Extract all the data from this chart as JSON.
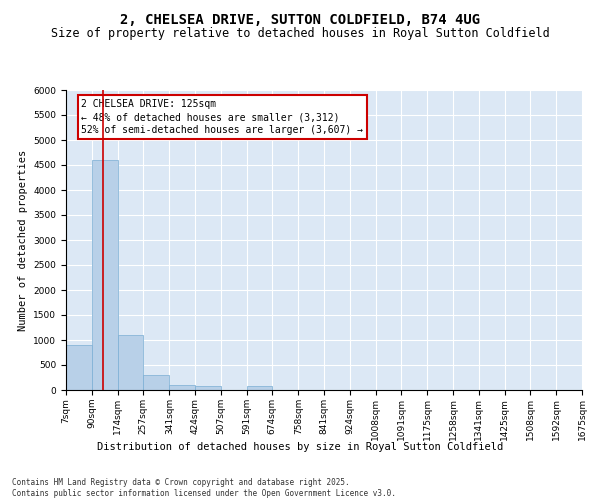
{
  "title": "2, CHELSEA DRIVE, SUTTON COLDFIELD, B74 4UG",
  "subtitle": "Size of property relative to detached houses in Royal Sutton Coldfield",
  "xlabel": "Distribution of detached houses by size in Royal Sutton Coldfield",
  "ylabel": "Number of detached properties",
  "bar_color": "#b8d0e8",
  "bar_edge_color": "#7aaed4",
  "background_color": "#dce8f5",
  "grid_color": "white",
  "bins": [
    7,
    90,
    174,
    257,
    341,
    424,
    507,
    591,
    674,
    758,
    841,
    924,
    1008,
    1091,
    1175,
    1258,
    1341,
    1425,
    1508,
    1592,
    1675
  ],
  "bin_labels": [
    "7sqm",
    "90sqm",
    "174sqm",
    "257sqm",
    "341sqm",
    "424sqm",
    "507sqm",
    "591sqm",
    "674sqm",
    "758sqm",
    "841sqm",
    "924sqm",
    "1008sqm",
    "1091sqm",
    "1175sqm",
    "1258sqm",
    "1341sqm",
    "1425sqm",
    "1508sqm",
    "1592sqm",
    "1675sqm"
  ],
  "counts": [
    900,
    4600,
    1100,
    300,
    100,
    80,
    0,
    80,
    0,
    0,
    0,
    0,
    0,
    0,
    0,
    0,
    0,
    0,
    0,
    0
  ],
  "ylim": [
    0,
    6000
  ],
  "yticks": [
    0,
    500,
    1000,
    1500,
    2000,
    2500,
    3000,
    3500,
    4000,
    4500,
    5000,
    5500,
    6000
  ],
  "property_size": 125,
  "red_line_color": "#cc0000",
  "annotation_text": "2 CHELSEA DRIVE: 125sqm\n← 48% of detached houses are smaller (3,312)\n52% of semi-detached houses are larger (3,607) →",
  "annotation_box_color": "#ffffff",
  "annotation_box_edge": "#cc0000",
  "footer_text": "Contains HM Land Registry data © Crown copyright and database right 2025.\nContains public sector information licensed under the Open Government Licence v3.0.",
  "title_fontsize": 10,
  "subtitle_fontsize": 8.5,
  "ylabel_fontsize": 7.5,
  "xlabel_fontsize": 7.5,
  "annotation_fontsize": 7,
  "footer_fontsize": 5.5,
  "tick_fontsize": 6.5
}
